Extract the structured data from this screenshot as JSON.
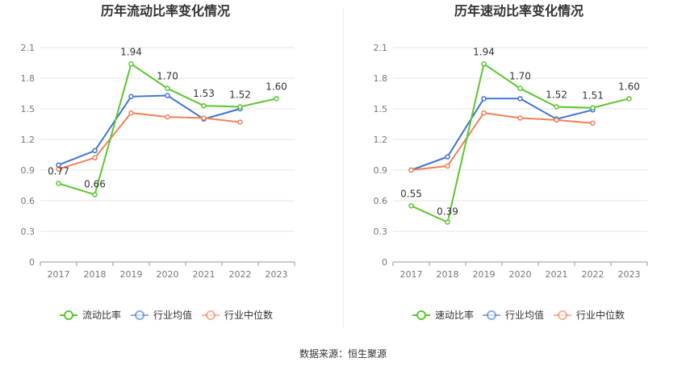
{
  "source_text": "数据来源：恒生聚源",
  "chart_data": [
    {
      "type": "line",
      "title": "历年流动比率变化情况",
      "categories": [
        "2017",
        "2018",
        "2019",
        "2020",
        "2021",
        "2022",
        "2023"
      ],
      "y_ticks": [
        "0",
        "0.3",
        "0.6",
        "0.9",
        "1.2",
        "1.5",
        "1.8",
        "2.1"
      ],
      "ylim": [
        0,
        2.1
      ],
      "grid": true,
      "legend_position": "bottom",
      "series": [
        {
          "name": "流动比率",
          "color": "#5cc531",
          "values": [
            0.77,
            0.66,
            1.94,
            1.7,
            1.53,
            1.52,
            1.6
          ],
          "labels": [
            "0.77",
            "0.66",
            "1.94",
            "1.70",
            "1.53",
            "1.52",
            "1.60"
          ]
        },
        {
          "name": "行业均值",
          "color": "#3f73d9",
          "values": [
            0.95,
            1.09,
            1.62,
            1.63,
            1.4,
            1.5,
            null
          ]
        },
        {
          "name": "行业中位数",
          "color": "#f08157",
          "values": [
            0.91,
            1.02,
            1.46,
            1.42,
            1.41,
            1.37,
            null
          ]
        }
      ]
    },
    {
      "type": "line",
      "title": "历年速动比率变化情况",
      "categories": [
        "2017",
        "2018",
        "2019",
        "2020",
        "2021",
        "2022",
        "2023"
      ],
      "y_ticks": [
        "0",
        "0.3",
        "0.6",
        "0.9",
        "1.2",
        "1.5",
        "1.8",
        "2.1"
      ],
      "ylim": [
        0,
        2.1
      ],
      "grid": true,
      "legend_position": "bottom",
      "series": [
        {
          "name": "速动比率",
          "color": "#5cc531",
          "values": [
            0.55,
            0.39,
            1.94,
            1.7,
            1.52,
            1.51,
            1.6
          ],
          "labels": [
            "0.55",
            "0.39",
            "1.94",
            "1.70",
            "1.52",
            "1.51",
            "1.60"
          ]
        },
        {
          "name": "行业均值",
          "color": "#3f73d9",
          "values": [
            0.9,
            1.03,
            1.6,
            1.6,
            1.4,
            1.49,
            null
          ]
        },
        {
          "name": "行业中位数",
          "color": "#f08157",
          "values": [
            0.9,
            0.94,
            1.46,
            1.41,
            1.39,
            1.36,
            null
          ]
        }
      ]
    }
  ]
}
